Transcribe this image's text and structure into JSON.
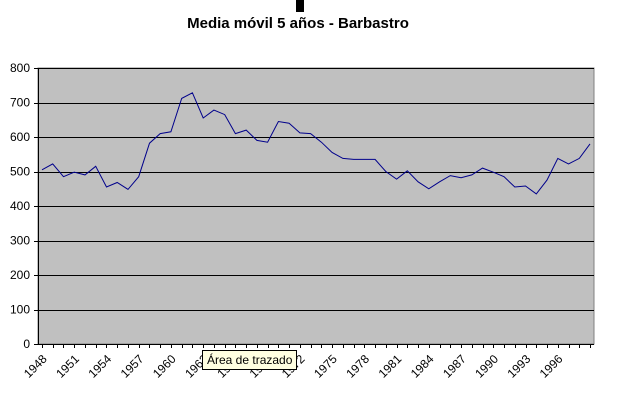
{
  "chart_data": {
    "type": "line",
    "title": "Media móvil 5 años - Barbastro",
    "xlabel": "",
    "ylabel": "",
    "x": [
      1948,
      1949,
      1950,
      1951,
      1952,
      1953,
      1954,
      1955,
      1956,
      1957,
      1958,
      1959,
      1960,
      1961,
      1962,
      1963,
      1964,
      1965,
      1966,
      1967,
      1968,
      1969,
      1970,
      1971,
      1972,
      1973,
      1974,
      1975,
      1976,
      1977,
      1978,
      1979,
      1980,
      1981,
      1982,
      1983,
      1984,
      1985,
      1986,
      1987,
      1988,
      1989,
      1990,
      1991,
      1992,
      1993,
      1994,
      1995,
      1996,
      1997,
      1998,
      1999
    ],
    "series": [
      {
        "values": [
          505,
          522,
          485,
          498,
          490,
          515,
          455,
          468,
          448,
          485,
          582,
          610,
          615,
          712,
          728,
          655,
          678,
          665,
          610,
          620,
          590,
          585,
          645,
          640,
          612,
          610,
          585,
          555,
          538,
          535,
          535,
          535,
          500,
          478,
          502,
          470,
          450,
          470,
          488,
          482,
          490,
          510,
          498,
          485,
          455,
          458,
          435,
          475,
          538,
          522,
          538,
          580
        ],
        "color": "#00008b"
      }
    ],
    "xticks": [
      "1948",
      "1951",
      "1954",
      "1957",
      "1960",
      "1963",
      "1966",
      "1969",
      "1972",
      "1975",
      "1978",
      "1981",
      "1984",
      "1987",
      "1990",
      "1993",
      "1996"
    ],
    "yticks": [
      0,
      100,
      200,
      300,
      400,
      500,
      600,
      700,
      800
    ],
    "ylim": [
      0,
      800
    ],
    "xlim": [
      1948,
      1999
    ],
    "grid": "horizontal",
    "legend": "none",
    "plot_background": "#c0c0c0",
    "axis_color": "#808080"
  },
  "tooltip": {
    "text": "Área de trazado"
  }
}
